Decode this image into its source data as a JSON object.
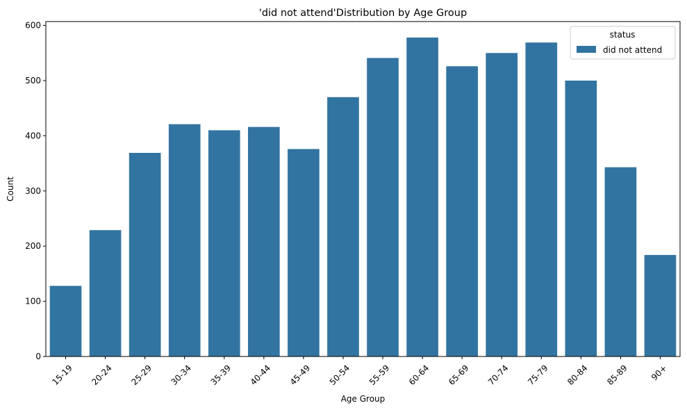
{
  "chart_data": {
    "type": "bar",
    "title": "'did not attend'Distribution by Age Group",
    "xlabel": "Age Group",
    "ylabel": "Count",
    "categories": [
      "15-19",
      "20-24",
      "25-29",
      "30-34",
      "35-39",
      "40-44",
      "45-49",
      "50-54",
      "55-59",
      "60-64",
      "65-69",
      "70-74",
      "75-79",
      "80-84",
      "85-89",
      "90+"
    ],
    "series": [
      {
        "name": "did not attend",
        "values": [
          128,
          229,
          369,
          421,
          410,
          416,
          376,
          470,
          541,
          578,
          526,
          550,
          569,
          500,
          343,
          184
        ]
      }
    ],
    "ylim": [
      0,
      607
    ],
    "yticks": [
      0,
      100,
      200,
      300,
      400,
      500,
      600
    ],
    "legend": {
      "title": "status",
      "position": "top-right"
    },
    "grid": false,
    "colors": {
      "bar": "#3274a1",
      "axis": "#000000",
      "legend_border": "#cccccc"
    }
  }
}
